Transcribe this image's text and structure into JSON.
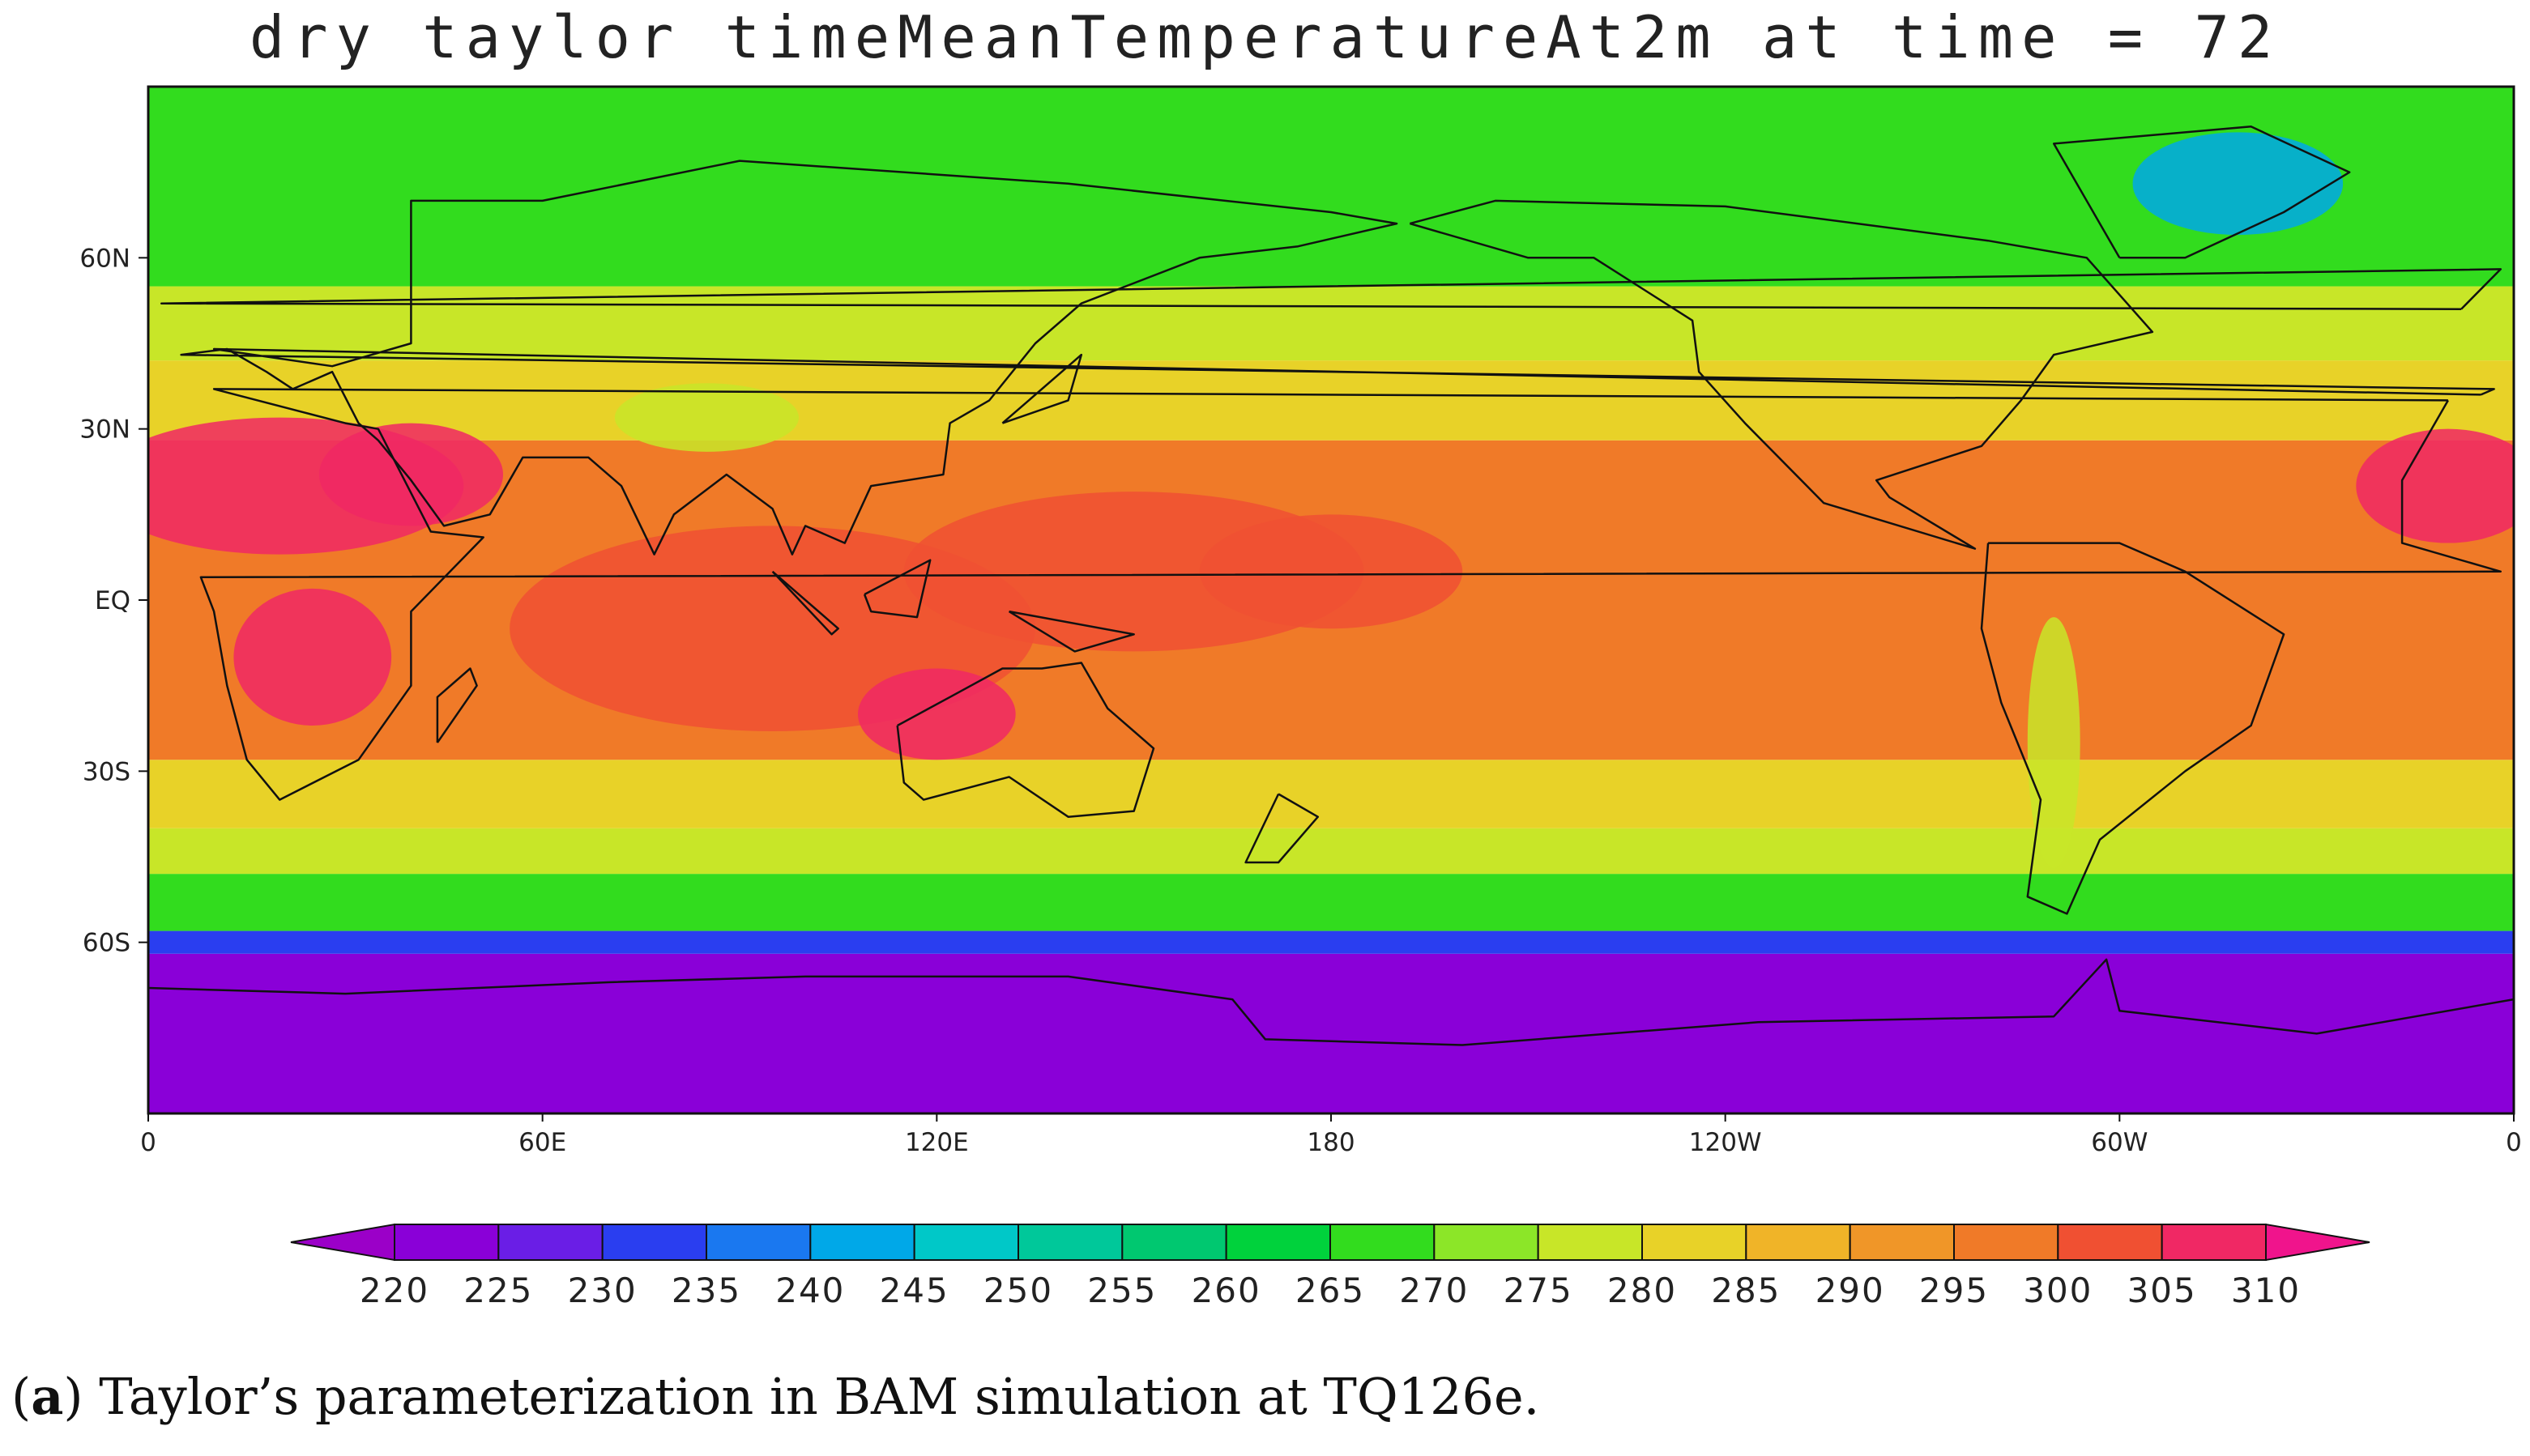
{
  "title": "dry taylor timeMeanTemperatureAt2m at time = 72",
  "caption": {
    "panel": "a",
    "text": " Taylor’s parameterization in BAM simulation at TQ126e."
  },
  "lat_labels": [
    "60N",
    "30N",
    "EQ",
    "30S",
    "60S"
  ],
  "lon_labels": [
    "0",
    "60E",
    "120E",
    "180",
    "120W",
    "60W",
    "0"
  ],
  "colorbar": {
    "levels": [
      220,
      225,
      230,
      235,
      240,
      245,
      250,
      255,
      260,
      265,
      270,
      275,
      280,
      285,
      290,
      295,
      300,
      305,
      310
    ],
    "labels": [
      "220",
      "225",
      "230",
      "235",
      "240",
      "245",
      "250",
      "255",
      "260",
      "265",
      "270",
      "275",
      "280",
      "285",
      "290",
      "295",
      "300",
      "305",
      "310"
    ],
    "colors": [
      "#9b00c8",
      "#8a00d8",
      "#6a1ee6",
      "#2a3ef0",
      "#1a78f0",
      "#00a8e8",
      "#00c8c8",
      "#00c89a",
      "#00c870",
      "#00d23c",
      "#32dc1e",
      "#8ce628",
      "#c8e628",
      "#e8d228",
      "#f0b428",
      "#f09628",
      "#f07a28",
      "#f05032",
      "#f02864",
      "#f0148c"
    ]
  },
  "map": {
    "colors": {
      "polar_south": "#8a00d8",
      "subpolar_south": "#2a3ef0",
      "mid_south": "#32dc1e",
      "temperate": "#c8e628",
      "subtropical": "#e8d228",
      "tropical": "#f07a28",
      "warm_tropics": "#f05032",
      "hot_desert": "#f02864",
      "arctic": "#32dc1e",
      "greenland": "#00a8e8",
      "coast": "#111111"
    }
  }
}
